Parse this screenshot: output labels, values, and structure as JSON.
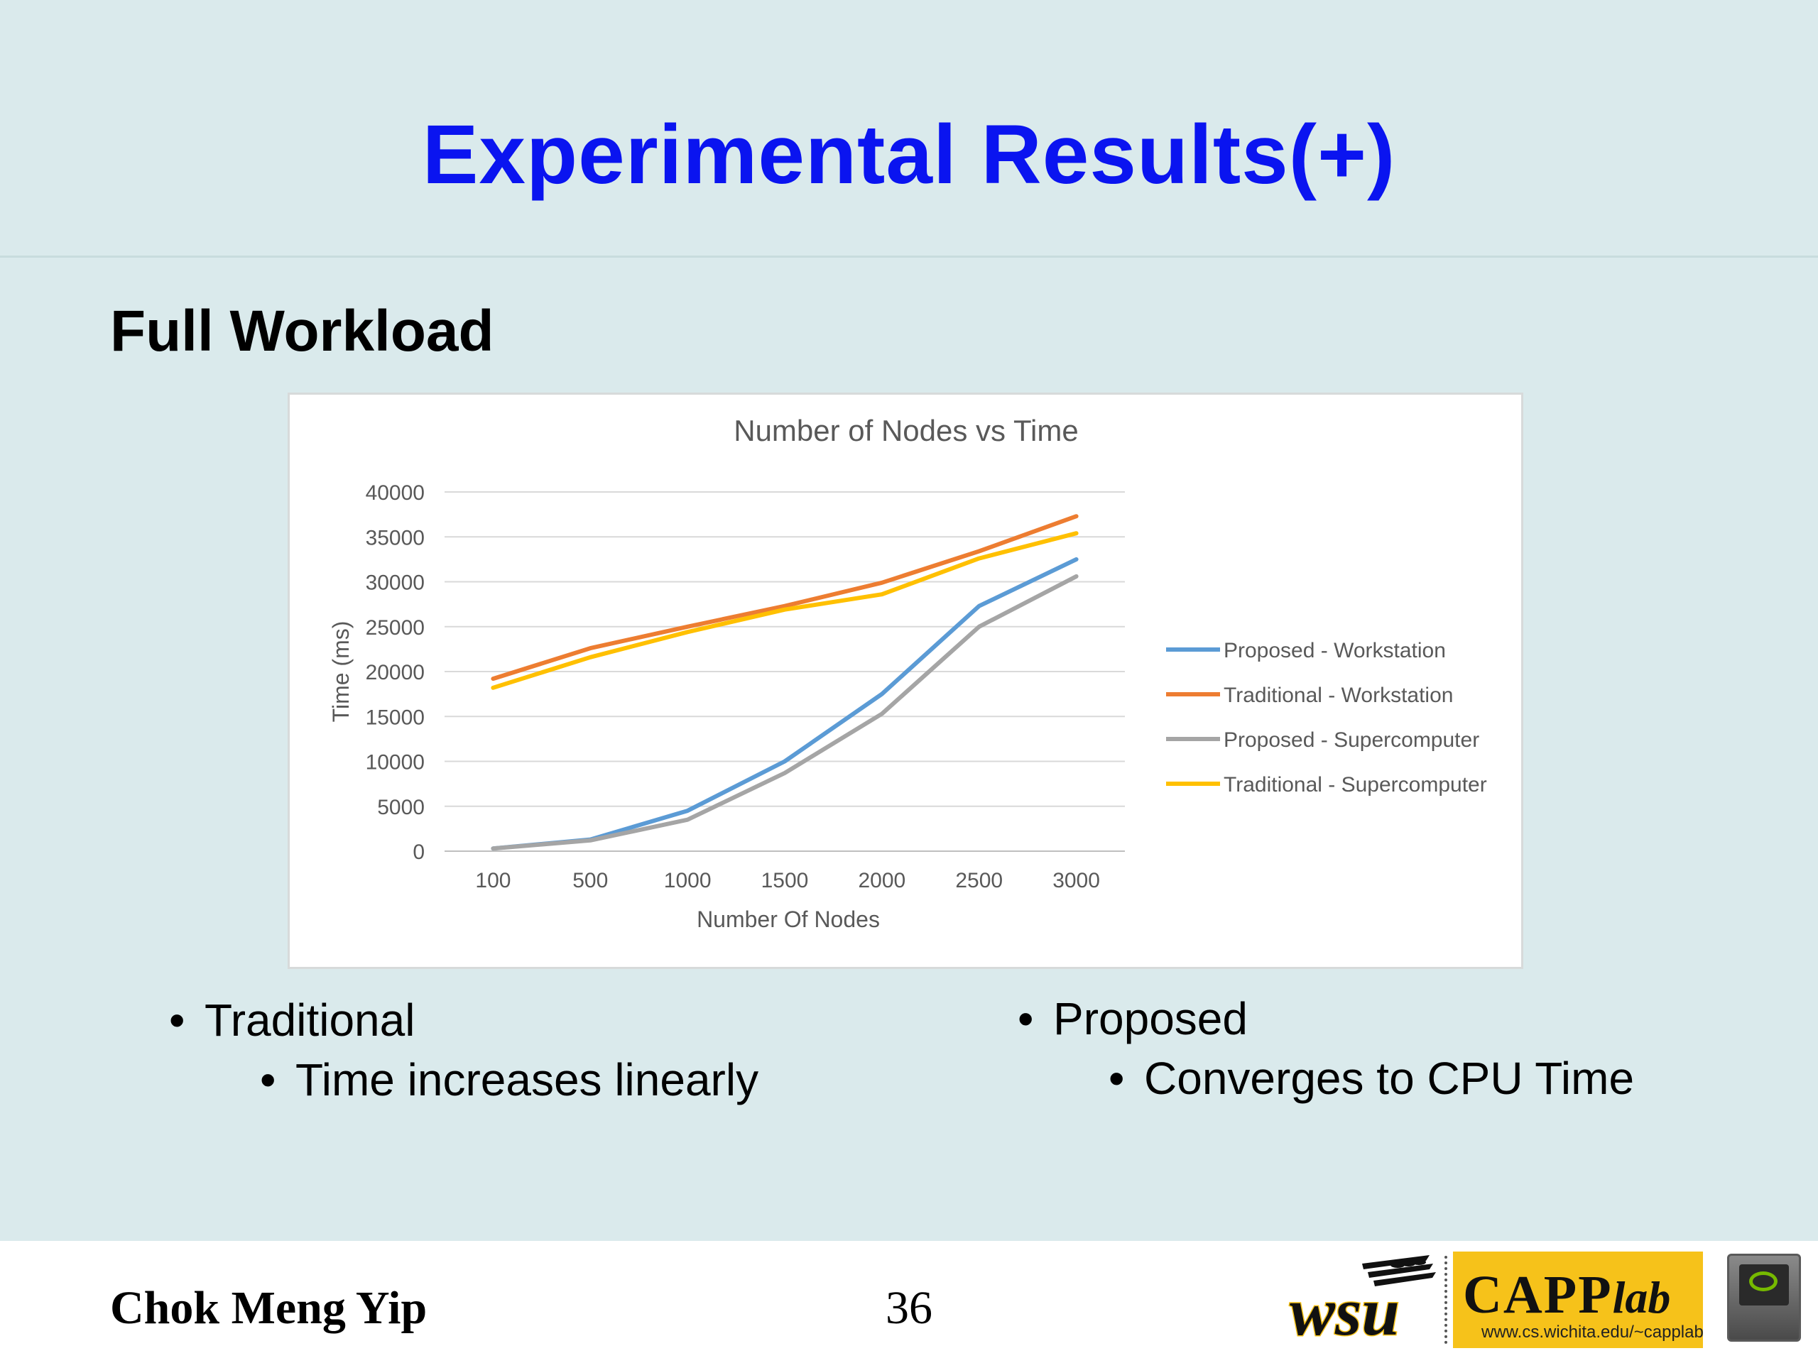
{
  "slide": {
    "title": "Experimental Results(+)",
    "subtitle": "Full Workload",
    "bullets_left": {
      "main": "Traditional",
      "sub": "Time increases linearly"
    },
    "bullets_right": {
      "main": "Proposed",
      "sub": "Converges to CPU Time"
    },
    "footer": {
      "author": "Chok Meng Yip",
      "page": "36",
      "logos": {
        "wsu": "wsu-logo",
        "capp": "CAPP",
        "capp_lab": "lab",
        "capp_url": "www.cs.wichita.edu/~capplab",
        "nvidia": "nvidia-logo"
      }
    },
    "colors": {
      "title": "#0a14f0",
      "background": "#daeaec",
      "footer_background": "#ffffff",
      "capp_yellow": "#f6c21a"
    }
  },
  "chart_data": {
    "type": "line",
    "title": "Number of Nodes vs Time",
    "xlabel": "Number Of Nodes",
    "ylabel": "Time (ms)",
    "categories": [
      "100",
      "500",
      "1000",
      "1500",
      "2000",
      "2500",
      "3000"
    ],
    "ylim": [
      0,
      40000
    ],
    "yticks": [
      0,
      5000,
      10000,
      15000,
      20000,
      25000,
      30000,
      35000,
      40000
    ],
    "grid": true,
    "legend_position": "right",
    "series": [
      {
        "name": "Proposed - Workstation",
        "color": "#5b9bd5",
        "values": [
          300,
          1300,
          4500,
          10000,
          17500,
          27300,
          32500
        ]
      },
      {
        "name": "Traditional - Workstation",
        "color": "#ed7d31",
        "values": [
          19200,
          22600,
          25000,
          27300,
          29900,
          33400,
          37300
        ]
      },
      {
        "name": "Proposed - Supercomputer",
        "color": "#a5a5a5",
        "values": [
          300,
          1200,
          3500,
          8700,
          15300,
          25000,
          30600
        ]
      },
      {
        "name": "Traditional - Supercomputer",
        "color": "#ffc000",
        "values": [
          18200,
          21600,
          24400,
          26900,
          28600,
          32600,
          35400
        ]
      }
    ]
  }
}
